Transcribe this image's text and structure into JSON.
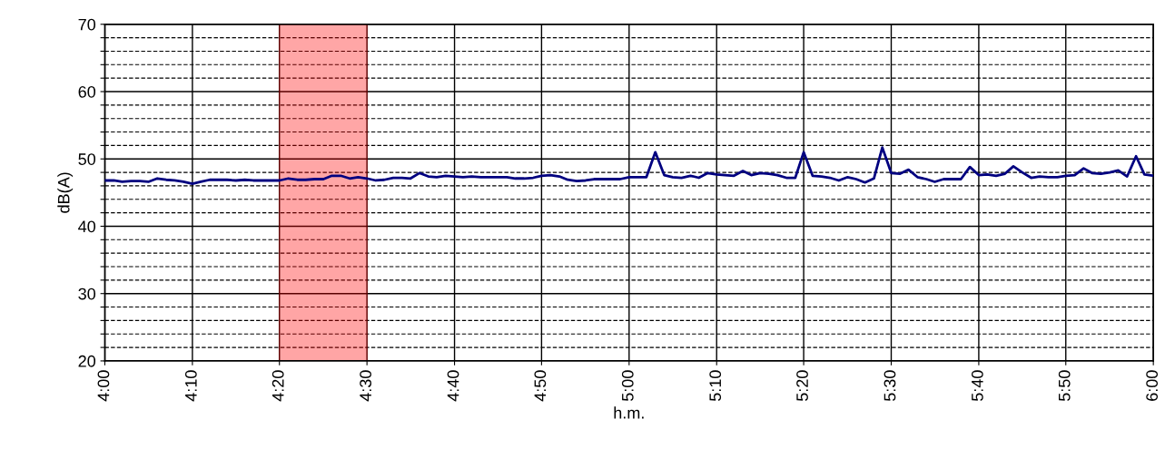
{
  "chart_data": {
    "type": "line",
    "xlabel": "h.m.",
    "ylabel": "dB(A)",
    "x": [
      4,
      4.017,
      4.033,
      4.05,
      4.067,
      4.083,
      4.1,
      4.117,
      4.133,
      4.15,
      4.167,
      4.183,
      4.2,
      4.217,
      4.233,
      4.25,
      4.267,
      4.283,
      4.3,
      4.317,
      4.333,
      4.35,
      4.367,
      4.383,
      4.4,
      4.417,
      4.433,
      4.45,
      4.467,
      4.483,
      4.5,
      4.517,
      4.533,
      4.55,
      4.567,
      4.583,
      4.6,
      4.617,
      4.633,
      4.65,
      4.667,
      4.683,
      4.7,
      4.717,
      4.733,
      4.75,
      4.767,
      4.783,
      4.8,
      4.817,
      4.833,
      4.85,
      4.867,
      4.883,
      4.9,
      4.917,
      4.933,
      4.95,
      4.967,
      4.983,
      5,
      5.017,
      5.033,
      5.05,
      5.067,
      5.083,
      5.1,
      5.117,
      5.133,
      5.15,
      5.167,
      5.183,
      5.2,
      5.217,
      5.233,
      5.25,
      5.267,
      5.283,
      5.3,
      5.317,
      5.333,
      5.35,
      5.367,
      5.383,
      5.4,
      5.417,
      5.433,
      5.45,
      5.467,
      5.483,
      5.5,
      5.517,
      5.533,
      5.55,
      5.567,
      5.583,
      5.6,
      5.617,
      5.633,
      5.65,
      5.667,
      5.683,
      5.7,
      5.717,
      5.733,
      5.75,
      5.767,
      5.783,
      5.8,
      5.817,
      5.833,
      5.85,
      5.867,
      5.883,
      5.9,
      5.917,
      5.933,
      5.95,
      5.967,
      5.983,
      6
    ],
    "series": [
      {
        "color": "#000080",
        "values": [
          46.8,
          46.8,
          46.6,
          46.7,
          46.7,
          46.6,
          47.1,
          46.9,
          46.8,
          46.6,
          46.3,
          46.6,
          46.9,
          46.9,
          46.9,
          46.8,
          46.9,
          46.8,
          46.8,
          46.8,
          46.8,
          47.1,
          46.9,
          46.9,
          47.0,
          47.0,
          47.5,
          47.5,
          47.1,
          47.3,
          47.1,
          46.8,
          46.9,
          47.2,
          47.2,
          47.1,
          47.9,
          47.4,
          47.3,
          47.5,
          47.4,
          47.3,
          47.4,
          47.3,
          47.3,
          47.3,
          47.3,
          47.1,
          47.1,
          47.2,
          47.5,
          47.6,
          47.4,
          46.9,
          46.7,
          46.8,
          47.0,
          47.0,
          47.0,
          47.0,
          47.3,
          47.3,
          47.3,
          51.0,
          47.6,
          47.3,
          47.2,
          47.5,
          47.2,
          47.9,
          47.7,
          47.6,
          47.5,
          48.2,
          47.6,
          47.9,
          47.8,
          47.6,
          47.2,
          47.2,
          51.0,
          47.5,
          47.4,
          47.2,
          46.8,
          47.3,
          47.0,
          46.5,
          47.1,
          51.7,
          47.9,
          47.8,
          48.4,
          47.3,
          47.0,
          46.6,
          47.0,
          47.0,
          47.0,
          48.8,
          47.6,
          47.7,
          47.5,
          47.8,
          48.9,
          48.0,
          47.2,
          47.4,
          47.3,
          47.3,
          47.5,
          47.6,
          48.6,
          47.9,
          47.8,
          48.0,
          48.3,
          47.4,
          50.4,
          47.7,
          47.5
        ]
      }
    ],
    "xlim": [
      4,
      6
    ],
    "xticks": [
      {
        "value": 4,
        "label": "4:00"
      },
      {
        "value": 4.167,
        "label": "4:10"
      },
      {
        "value": 4.333,
        "label": "4:20"
      },
      {
        "value": 4.5,
        "label": "4:30"
      },
      {
        "value": 4.667,
        "label": "4:40"
      },
      {
        "value": 4.833,
        "label": "4:50"
      },
      {
        "value": 5,
        "label": "5:00"
      },
      {
        "value": 5.167,
        "label": "5:10"
      },
      {
        "value": 5.333,
        "label": "5:20"
      },
      {
        "value": 5.5,
        "label": "5:30"
      },
      {
        "value": 5.667,
        "label": "5:40"
      },
      {
        "value": 5.833,
        "label": "5:50"
      },
      {
        "value": 6,
        "label": "6:00"
      }
    ],
    "ylim": [
      20,
      70
    ],
    "yticks": [
      20,
      {
        "value": 22,
        "label": null
      },
      {
        "value": 24,
        "label": null
      },
      {
        "value": 26,
        "label": null
      },
      {
        "value": 28,
        "label": null
      },
      30,
      {
        "value": 32,
        "label": null
      },
      {
        "value": 34,
        "label": null
      },
      {
        "value": 36,
        "label": null
      },
      {
        "value": 38,
        "label": null
      },
      40,
      {
        "value": 42,
        "label": null
      },
      {
        "value": 44,
        "label": null
      },
      {
        "value": 46,
        "label": null
      },
      {
        "value": 48,
        "label": null
      },
      50,
      {
        "value": 52,
        "label": null
      },
      {
        "value": 54,
        "label": null
      },
      {
        "value": 56,
        "label": null
      },
      {
        "value": 58,
        "label": null
      },
      60,
      {
        "value": 62,
        "label": null
      },
      {
        "value": 64,
        "label": null
      },
      {
        "value": 66,
        "label": null
      },
      {
        "value": 68,
        "label": null
      },
      70
    ],
    "grid": true,
    "bands": [
      {
        "axis": "x",
        "from": 4.333,
        "to": 4.5,
        "color": "#ff0000"
      }
    ]
  }
}
